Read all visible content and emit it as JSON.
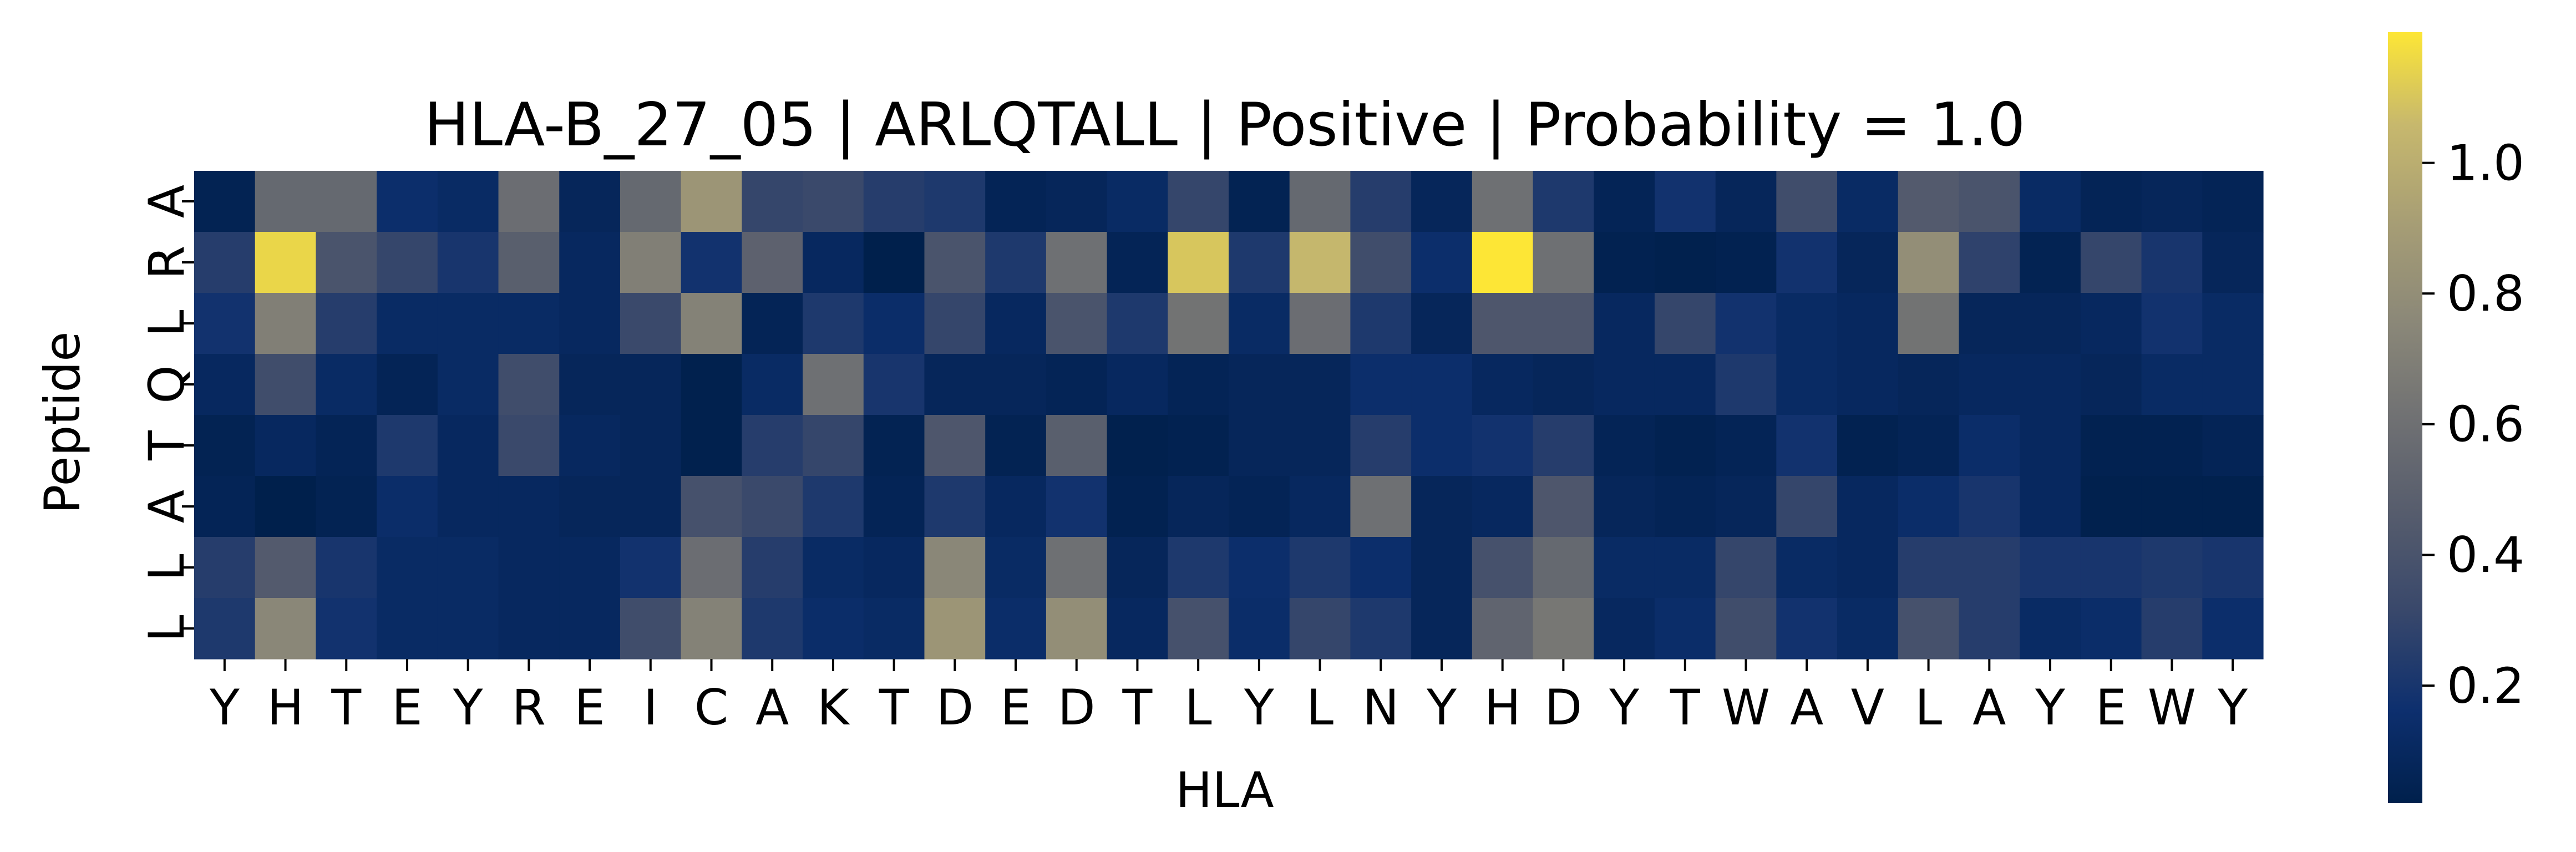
{
  "chart_data": {
    "type": "heatmap",
    "title": "HLA-B_27_05 | ARLQTALL | Positive | Probability = 1.0",
    "xlabel": "HLA",
    "ylabel": "Peptide",
    "x_ticks": [
      "Y",
      "H",
      "T",
      "E",
      "Y",
      "R",
      "E",
      "I",
      "C",
      "A",
      "K",
      "T",
      "D",
      "E",
      "D",
      "T",
      "L",
      "Y",
      "L",
      "N",
      "Y",
      "H",
      "D",
      "Y",
      "T",
      "W",
      "A",
      "V",
      "L",
      "A",
      "Y",
      "E",
      "W",
      "Y"
    ],
    "y_ticks": [
      "A",
      "R",
      "L",
      "Q",
      "T",
      "A",
      "L",
      "L"
    ],
    "colormap": "cividis",
    "colorbar": {
      "vmin": 0.02,
      "vmax": 1.2,
      "ticks": [
        0.2,
        0.4,
        0.6,
        0.8,
        1.0
      ],
      "tick_labels": [
        "0.2",
        "0.4",
        "0.6",
        "0.8",
        "1.0"
      ]
    },
    "values": [
      [
        0.05,
        0.55,
        0.55,
        0.15,
        0.12,
        0.58,
        0.08,
        0.55,
        0.85,
        0.3,
        0.32,
        0.25,
        0.22,
        0.06,
        0.08,
        0.12,
        0.3,
        0.05,
        0.55,
        0.25,
        0.08,
        0.6,
        0.22,
        0.06,
        0.18,
        0.08,
        0.35,
        0.12,
        0.45,
        0.4,
        0.12,
        0.06,
        0.08,
        0.06
      ],
      [
        0.25,
        1.15,
        0.4,
        0.3,
        0.2,
        0.48,
        0.1,
        0.7,
        0.18,
        0.5,
        0.1,
        0.02,
        0.4,
        0.22,
        0.6,
        0.06,
        1.1,
        0.22,
        1.05,
        0.35,
        0.15,
        1.2,
        0.6,
        0.04,
        0.03,
        0.04,
        0.18,
        0.08,
        0.8,
        0.28,
        0.05,
        0.3,
        0.2,
        0.08
      ],
      [
        0.18,
        0.7,
        0.25,
        0.12,
        0.12,
        0.12,
        0.1,
        0.32,
        0.72,
        0.06,
        0.22,
        0.14,
        0.3,
        0.1,
        0.4,
        0.22,
        0.62,
        0.12,
        0.58,
        0.22,
        0.08,
        0.42,
        0.42,
        0.1,
        0.3,
        0.18,
        0.12,
        0.1,
        0.62,
        0.08,
        0.08,
        0.1,
        0.18,
        0.12
      ],
      [
        0.1,
        0.35,
        0.12,
        0.06,
        0.12,
        0.35,
        0.08,
        0.08,
        0.03,
        0.12,
        0.6,
        0.2,
        0.08,
        0.08,
        0.06,
        0.1,
        0.06,
        0.08,
        0.08,
        0.15,
        0.15,
        0.1,
        0.08,
        0.1,
        0.1,
        0.22,
        0.12,
        0.1,
        0.08,
        0.1,
        0.1,
        0.08,
        0.12,
        0.12
      ],
      [
        0.05,
        0.1,
        0.06,
        0.22,
        0.1,
        0.32,
        0.1,
        0.08,
        0.03,
        0.25,
        0.3,
        0.05,
        0.42,
        0.05,
        0.48,
        0.03,
        0.04,
        0.08,
        0.08,
        0.25,
        0.15,
        0.18,
        0.25,
        0.06,
        0.04,
        0.06,
        0.18,
        0.04,
        0.06,
        0.14,
        0.1,
        0.04,
        0.04,
        0.06
      ],
      [
        0.06,
        0.02,
        0.05,
        0.14,
        0.1,
        0.1,
        0.08,
        0.08,
        0.38,
        0.32,
        0.22,
        0.06,
        0.22,
        0.1,
        0.18,
        0.04,
        0.08,
        0.06,
        0.1,
        0.6,
        0.08,
        0.1,
        0.42,
        0.08,
        0.06,
        0.08,
        0.3,
        0.1,
        0.14,
        0.2,
        0.1,
        0.03,
        0.03,
        0.03
      ],
      [
        0.25,
        0.45,
        0.2,
        0.12,
        0.12,
        0.1,
        0.1,
        0.18,
        0.58,
        0.25,
        0.12,
        0.1,
        0.75,
        0.12,
        0.6,
        0.08,
        0.22,
        0.15,
        0.22,
        0.15,
        0.08,
        0.38,
        0.55,
        0.12,
        0.12,
        0.3,
        0.12,
        0.1,
        0.25,
        0.25,
        0.2,
        0.2,
        0.22,
        0.2
      ],
      [
        0.22,
        0.75,
        0.18,
        0.12,
        0.12,
        0.1,
        0.1,
        0.35,
        0.72,
        0.22,
        0.14,
        0.12,
        0.85,
        0.14,
        0.8,
        0.1,
        0.38,
        0.14,
        0.3,
        0.22,
        0.08,
        0.52,
        0.65,
        0.1,
        0.14,
        0.35,
        0.18,
        0.12,
        0.38,
        0.25,
        0.12,
        0.14,
        0.25,
        0.15
      ]
    ]
  }
}
